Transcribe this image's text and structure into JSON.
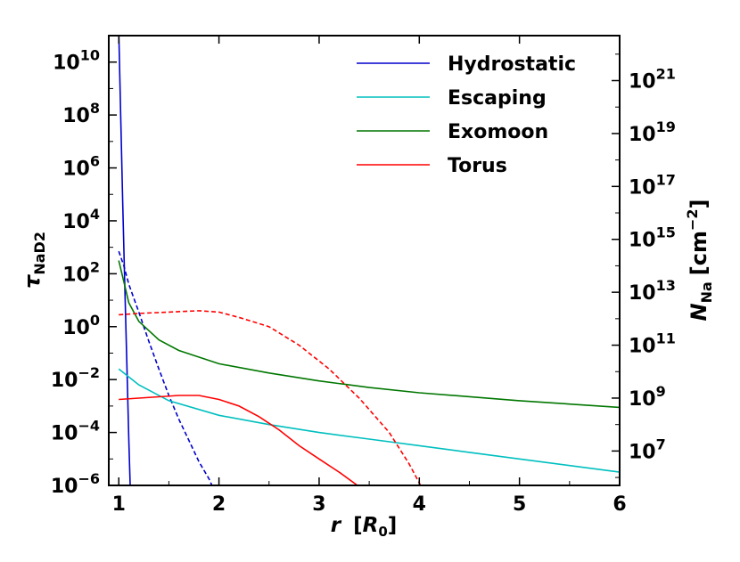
{
  "chart_data": {
    "type": "line",
    "xlabel": "r",
    "xlabel_unit": "R",
    "xlabel_unit_sub": "0",
    "ylabel": "τ",
    "ylabel_sub": "NaD2",
    "y2label": "N",
    "y2label_sub": "Na",
    "y2label_unit": "cm",
    "y2label_unit_sup": "−2",
    "xlim": [
      0.9,
      6.0
    ],
    "ylim_log10": [
      -6,
      11
    ],
    "y2lim_log10": [
      5.7,
      22.7
    ],
    "y_scale": "log",
    "x_ticks": [
      1,
      2,
      3,
      4,
      5,
      6
    ],
    "y_tick_exponents": [
      -6,
      -4,
      -2,
      0,
      2,
      4,
      6,
      8,
      10
    ],
    "y2_tick_exponents": [
      7,
      9,
      11,
      13,
      15,
      17,
      19,
      21
    ],
    "tick_base": "10",
    "grid": false,
    "legend_position": "top-right",
    "series": [
      {
        "name": "Hydrostatic",
        "color": "#0000cc",
        "style": "solid",
        "points": [
          [
            1.0,
            11.2
          ],
          [
            1.02,
            7.8
          ],
          [
            1.04,
            4.6
          ],
          [
            1.06,
            1.5
          ],
          [
            1.08,
            -1.3
          ],
          [
            1.1,
            -4.3
          ],
          [
            1.115,
            -6.2
          ]
        ]
      },
      {
        "name": "Hydrostatic",
        "color": "#0000cc",
        "style": "dashed",
        "legend": false,
        "points": [
          [
            1.0,
            2.85
          ],
          [
            1.05,
            2.3
          ],
          [
            1.1,
            1.6
          ],
          [
            1.2,
            0.55
          ],
          [
            1.3,
            -0.55
          ],
          [
            1.4,
            -1.6
          ],
          [
            1.5,
            -2.6
          ],
          [
            1.6,
            -3.5
          ],
          [
            1.7,
            -4.3
          ],
          [
            1.8,
            -5.1
          ],
          [
            1.9,
            -5.75
          ],
          [
            1.93,
            -6.0
          ]
        ]
      },
      {
        "name": "Escaping",
        "color": "#00bfbf",
        "style": "solid",
        "points": [
          [
            1.0,
            -1.6
          ],
          [
            1.2,
            -2.2
          ],
          [
            1.5,
            -2.8
          ],
          [
            2.0,
            -3.35
          ],
          [
            2.5,
            -3.7
          ],
          [
            3.0,
            -4.0
          ],
          [
            3.5,
            -4.25
          ],
          [
            4.0,
            -4.5
          ],
          [
            4.5,
            -4.75
          ],
          [
            5.0,
            -5.0
          ],
          [
            5.5,
            -5.25
          ],
          [
            6.0,
            -5.5
          ]
        ]
      },
      {
        "name": "Exomoon",
        "color": "#007700",
        "style": "solid",
        "points": [
          [
            1.0,
            2.5
          ],
          [
            1.05,
            1.7
          ],
          [
            1.1,
            0.9
          ],
          [
            1.2,
            0.2
          ],
          [
            1.4,
            -0.5
          ],
          [
            1.6,
            -0.9
          ],
          [
            2.0,
            -1.4
          ],
          [
            2.5,
            -1.75
          ],
          [
            3.0,
            -2.05
          ],
          [
            3.5,
            -2.3
          ],
          [
            4.0,
            -2.5
          ],
          [
            5.0,
            -2.8
          ],
          [
            6.0,
            -3.05
          ]
        ]
      },
      {
        "name": "Torus",
        "color": "#ff0000",
        "style": "solid",
        "points": [
          [
            1.0,
            -2.75
          ],
          [
            1.2,
            -2.7
          ],
          [
            1.4,
            -2.65
          ],
          [
            1.6,
            -2.6
          ],
          [
            1.8,
            -2.6
          ],
          [
            2.0,
            -2.75
          ],
          [
            2.2,
            -3.0
          ],
          [
            2.4,
            -3.4
          ],
          [
            2.6,
            -3.9
          ],
          [
            2.8,
            -4.5
          ],
          [
            3.0,
            -5.0
          ],
          [
            3.2,
            -5.5
          ],
          [
            3.4,
            -6.05
          ]
        ]
      },
      {
        "name": "Torus",
        "color": "#ff0000",
        "style": "dashed",
        "legend": false,
        "points": [
          [
            1.0,
            0.45
          ],
          [
            1.2,
            0.5
          ],
          [
            1.5,
            0.55
          ],
          [
            1.8,
            0.6
          ],
          [
            2.0,
            0.55
          ],
          [
            2.2,
            0.35
          ],
          [
            2.5,
            0.0
          ],
          [
            2.8,
            -0.7
          ],
          [
            3.1,
            -1.6
          ],
          [
            3.4,
            -2.7
          ],
          [
            3.7,
            -4.0
          ],
          [
            3.9,
            -5.2
          ],
          [
            4.02,
            -6.05
          ]
        ]
      }
    ]
  }
}
